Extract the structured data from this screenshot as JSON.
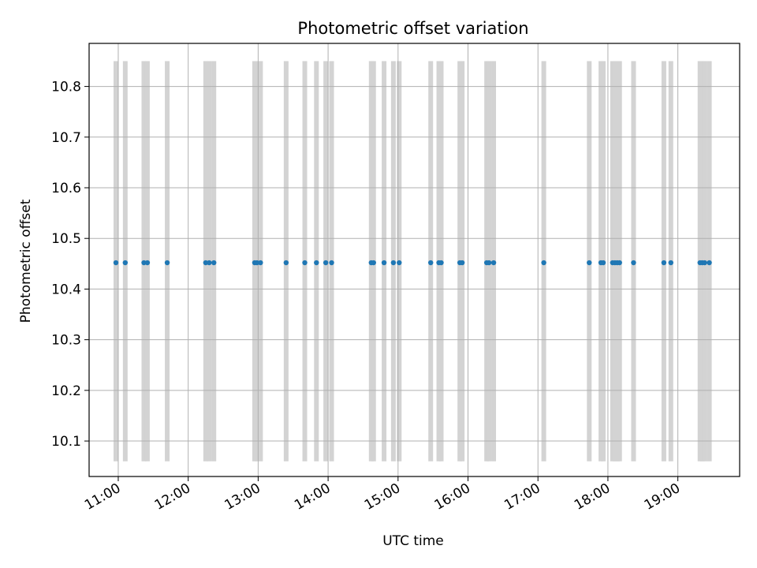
{
  "chart_data": {
    "type": "scatter",
    "title": "Photometric offset variation",
    "xlabel": "UTC time",
    "ylabel": "Photometric offset",
    "x_tick_labels": [
      "11:00",
      "12:00",
      "13:00",
      "14:00",
      "15:00",
      "16:00",
      "17:00",
      "18:00",
      "19:00"
    ],
    "y_tick_labels": [
      "10.1",
      "10.2",
      "10.3",
      "10.4",
      "10.5",
      "10.6",
      "10.7",
      "10.8"
    ],
    "xlim": [
      "10:35",
      "19:53"
    ],
    "ylim": [
      10.03,
      10.885
    ],
    "grid": true,
    "exposure_band_range": [
      10.06,
      10.85
    ],
    "exposure_times": [
      "10:58",
      "11:06",
      "11:22",
      "11:25",
      "11:42",
      "12:15",
      "12:18",
      "12:22",
      "12:57",
      "12:59",
      "13:02",
      "13:24",
      "13:40",
      "13:50",
      "13:58",
      "14:03",
      "14:37",
      "14:39",
      "14:48",
      "14:56",
      "15:01",
      "15:28",
      "15:35",
      "15:37",
      "15:53",
      "15:55",
      "16:16",
      "16:18",
      "16:22",
      "17:05",
      "17:44",
      "17:54",
      "17:56",
      "18:04",
      "18:06",
      "18:08",
      "18:10",
      "18:22",
      "18:48",
      "18:54",
      "19:19",
      "19:21",
      "19:23",
      "19:27"
    ],
    "series": [
      {
        "values": [
          [
            "10:58",
            10.452
          ],
          [
            "11:06",
            10.452
          ],
          [
            "11:22",
            10.452
          ],
          [
            "11:25",
            10.452
          ],
          [
            "11:42",
            10.452
          ],
          [
            "12:15",
            10.452
          ],
          [
            "12:18",
            10.452
          ],
          [
            "12:22",
            10.452
          ],
          [
            "12:57",
            10.452
          ],
          [
            "12:59",
            10.452
          ],
          [
            "13:02",
            10.452
          ],
          [
            "13:24",
            10.452
          ],
          [
            "13:40",
            10.452
          ],
          [
            "13:50",
            10.452
          ],
          [
            "13:58",
            10.452
          ],
          [
            "14:03",
            10.452
          ],
          [
            "14:37",
            10.452
          ],
          [
            "14:39",
            10.452
          ],
          [
            "14:48",
            10.452
          ],
          [
            "14:56",
            10.452
          ],
          [
            "15:01",
            10.452
          ],
          [
            "15:28",
            10.452
          ],
          [
            "15:35",
            10.452
          ],
          [
            "15:37",
            10.452
          ],
          [
            "15:53",
            10.452
          ],
          [
            "15:55",
            10.452
          ],
          [
            "16:16",
            10.452
          ],
          [
            "16:18",
            10.452
          ],
          [
            "16:22",
            10.452
          ],
          [
            "17:05",
            10.452
          ],
          [
            "17:44",
            10.452
          ],
          [
            "17:54",
            10.452
          ],
          [
            "17:56",
            10.452
          ],
          [
            "18:04",
            10.452
          ],
          [
            "18:06",
            10.452
          ],
          [
            "18:08",
            10.452
          ],
          [
            "18:10",
            10.452
          ],
          [
            "18:22",
            10.452
          ],
          [
            "18:48",
            10.452
          ],
          [
            "18:54",
            10.452
          ],
          [
            "19:19",
            10.452
          ],
          [
            "19:21",
            10.452
          ],
          [
            "19:23",
            10.452
          ],
          [
            "19:27",
            10.452
          ]
        ]
      }
    ],
    "colors": {
      "points": "#1f77b4",
      "exposure_band": "#d3d3d3",
      "grid": "#b0b0b0",
      "axes": "#000000"
    }
  }
}
